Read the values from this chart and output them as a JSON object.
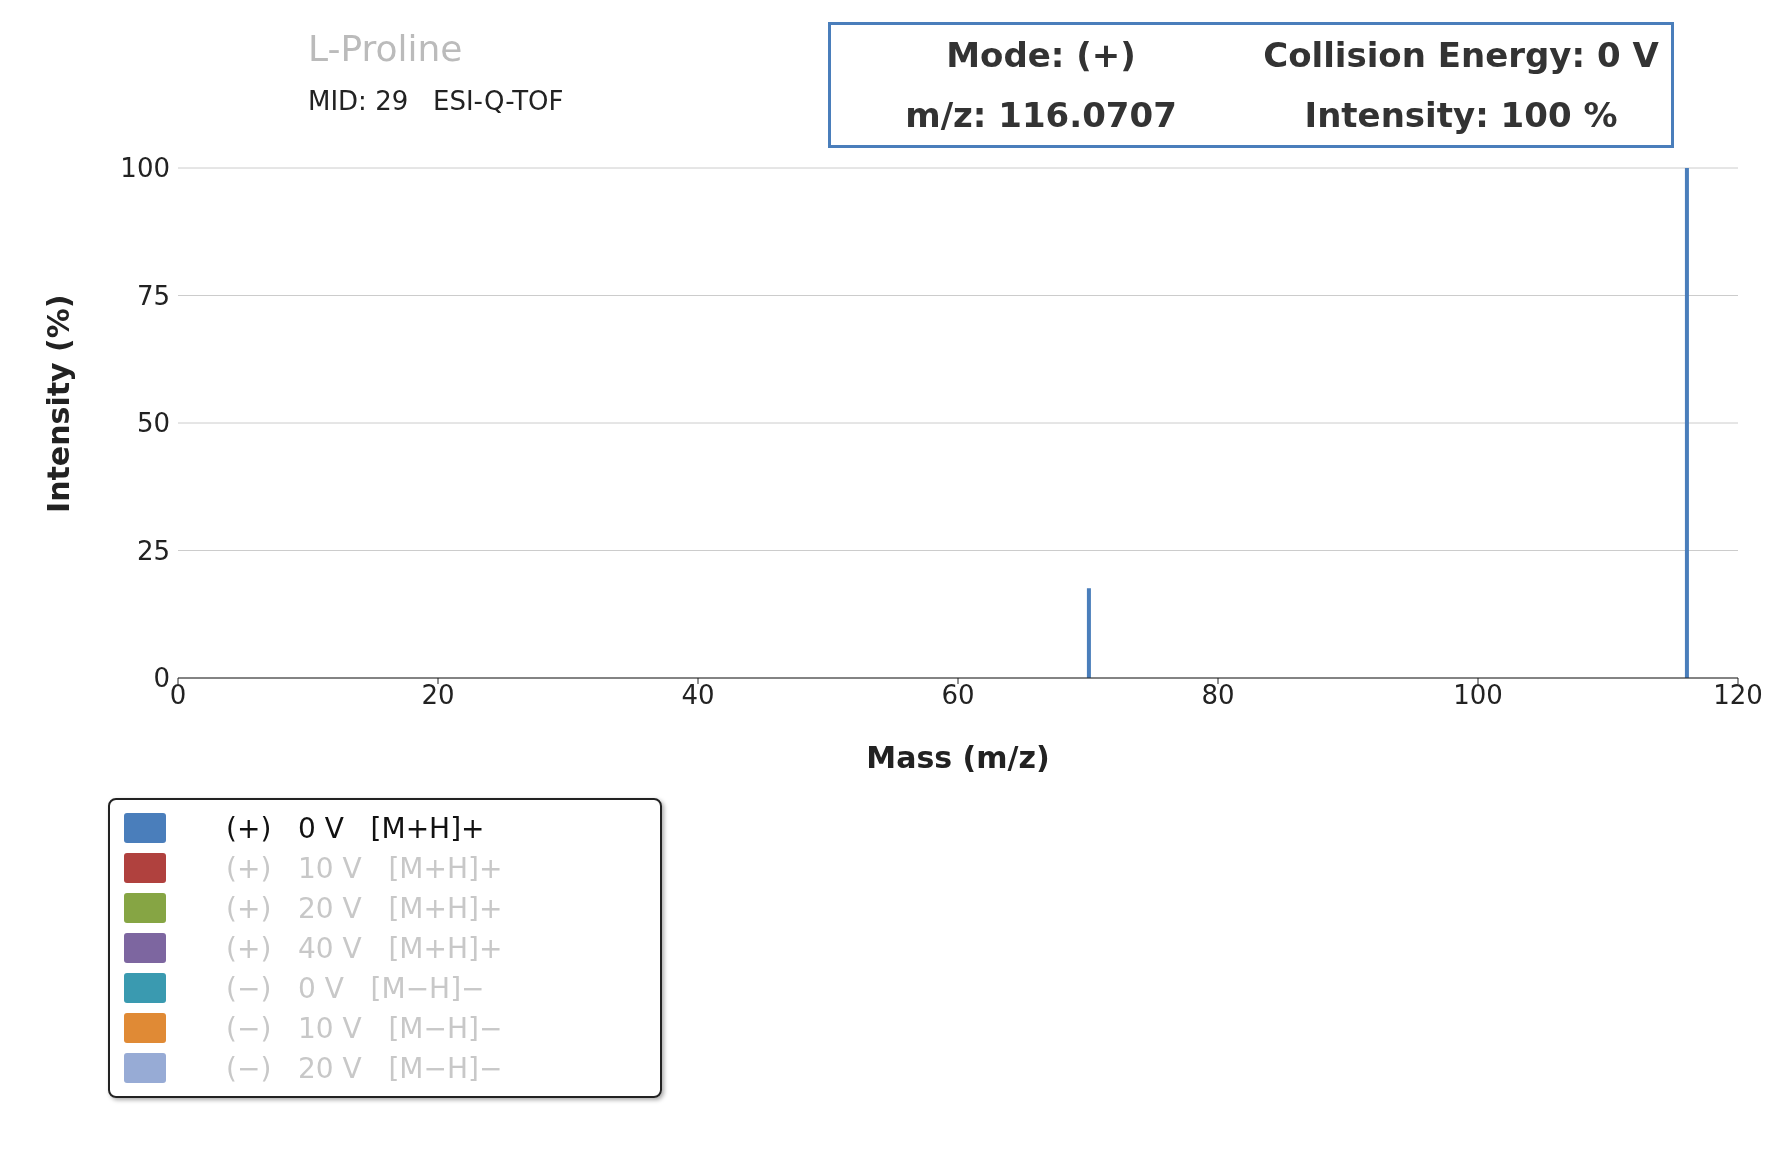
{
  "chart_data": {
    "type": "bar",
    "title": "L-Proline",
    "subtitle": "MID: 29   ESI-Q-TOF",
    "xlabel": "Mass (m/z)",
    "ylabel": "Intensity (%)",
    "x": [
      70.07,
      116.0707
    ],
    "series": [
      {
        "name": "(+)   0 V   [M+H]+",
        "color": "#4a7ebb",
        "values": [
          17.6,
          100
        ]
      },
      {
        "name": "(+)   10 V   [M+H]+",
        "color": "#b0413e",
        "values": [
          null,
          null
        ]
      },
      {
        "name": "(+)   20 V   [M+H]+",
        "color": "#86a544",
        "values": [
          null,
          null
        ]
      },
      {
        "name": "(+)   40 V   [M+H]+",
        "color": "#7d66a0",
        "values": [
          null,
          null
        ]
      },
      {
        "name": "(−)   0 V   [M−H]−",
        "color": "#3a9ab0",
        "values": [
          null,
          null
        ]
      },
      {
        "name": "(−)   10 V   [M−H]−",
        "color": "#e08a35",
        "values": [
          null,
          null
        ]
      },
      {
        "name": "(−)   20 V   [M−H]−",
        "color": "#97abd5",
        "values": [
          null,
          null
        ]
      }
    ],
    "annotations": [
      "Mode: (+)",
      "Collision Energy: 0 V",
      "m/z: 116.0707",
      "Intensity: 100 %"
    ],
    "xlim": [
      0,
      120
    ],
    "xticks": [
      0,
      20,
      40,
      60,
      80,
      100,
      120
    ],
    "ylim": [
      0,
      100
    ],
    "yticks": [
      0,
      25,
      50,
      75,
      100
    ],
    "grid": "y",
    "legend": "bottom left"
  }
}
